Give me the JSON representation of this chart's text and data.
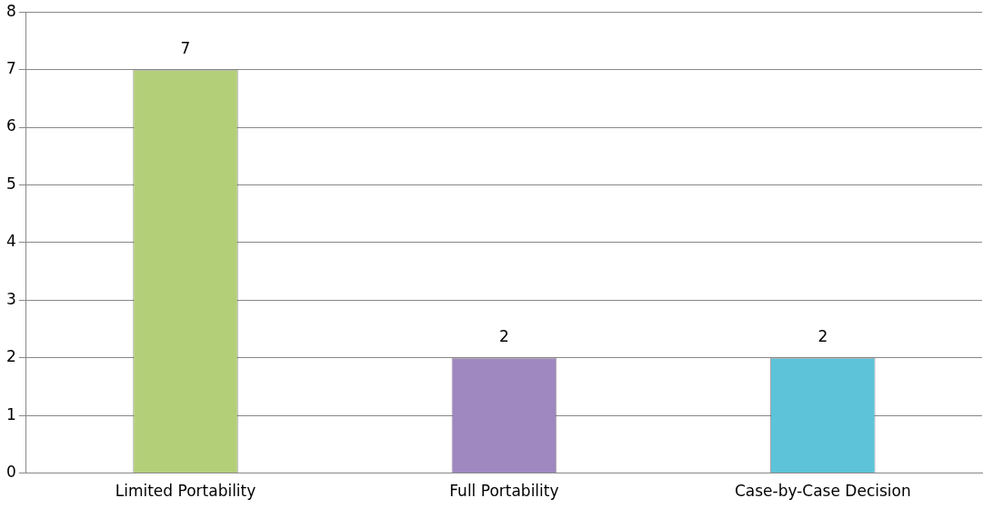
{
  "chart_data": {
    "type": "bar",
    "categories": [
      "Limited Portability",
      "Full Portability",
      "Case-by-Case Decision"
    ],
    "values": [
      7,
      2,
      2
    ],
    "colors": [
      "#b3cf78",
      "#9f87c0",
      "#5dc3d9"
    ],
    "ylim": [
      0,
      8
    ],
    "yticks": [
      0,
      1,
      2,
      3,
      4,
      5,
      6,
      7,
      8
    ],
    "grid": "y",
    "data_labels": true,
    "legend": false
  }
}
